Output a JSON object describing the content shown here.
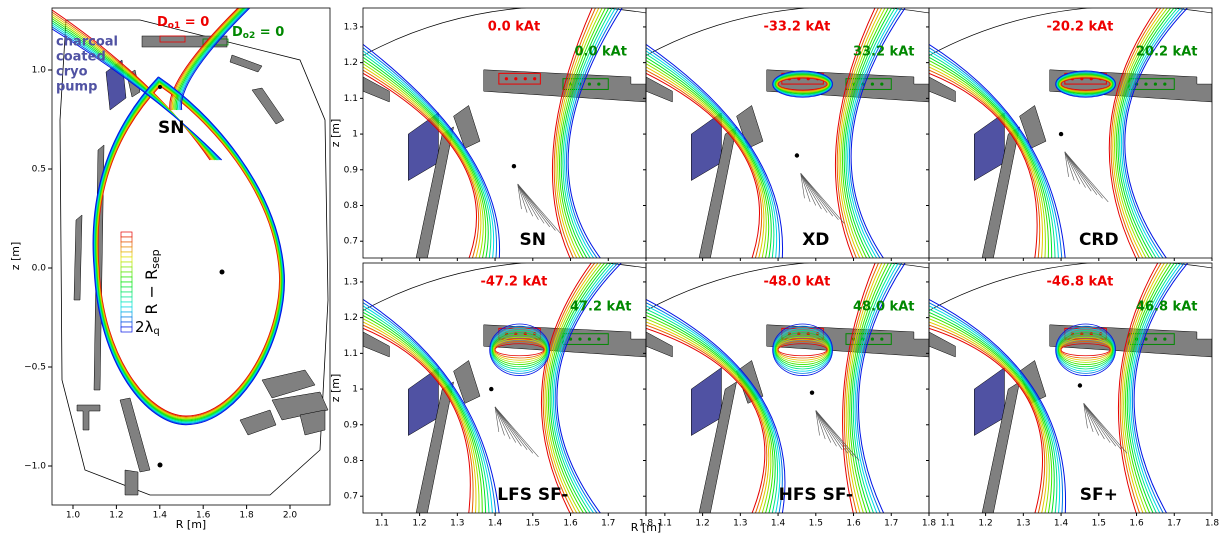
{
  "main_panel": {
    "xlabel": "R [m]",
    "ylabel": "z [m]",
    "xticks": [
      {
        "value": 1,
        "label": "1.0"
      },
      1.2,
      1.4,
      1.6,
      1.8,
      {
        "value": 2,
        "label": "2.0"
      }
    ],
    "yticks": [
      {
        "value": -1,
        "label": "−1.0"
      },
      {
        "value": -0.5,
        "label": "−0.5"
      },
      {
        "value": 0,
        "label": "0.0"
      },
      0.5,
      {
        "value": 1,
        "label": "1.0"
      }
    ],
    "coil_labels": [
      {
        "symbol": "D",
        "subscript": "o1",
        "text": " = 0"
      },
      {
        "symbol": "D",
        "subscript": "o2",
        "text": " = 0"
      }
    ],
    "pump_label": [
      "charcoal",
      "coated",
      "cryo",
      "pump"
    ],
    "config_label": "SN",
    "colorbar_label": {
      "text": "R − R",
      "subscript": "sep"
    },
    "colorbar_tick": {
      "text": "2λ",
      "subscript": "q"
    }
  },
  "panels_axes": {
    "xlabel": "R [m]",
    "ylabel": "z [m]",
    "xticks": [
      1.1,
      1.2,
      1.3,
      1.4,
      1.5,
      1.6,
      1.7,
      1.8
    ],
    "yticks": [
      0.7,
      0.8,
      0.9,
      1.0,
      1.1,
      1.2,
      1.3
    ]
  },
  "panels": [
    {
      "label": "SN",
      "current_1": "0.0 kAt",
      "current_2": "0.0 kAt"
    },
    {
      "label": "XD",
      "current_1": "-33.2 kAt",
      "current_2": "33.2 kAt"
    },
    {
      "label": "CRD",
      "current_1": "-20.2 kAt",
      "current_2": "20.2 kAt"
    },
    {
      "label": "LFS SF-",
      "current_1": "-47.2 kAt",
      "current_2": "47.2 kAt"
    },
    {
      "label": "HFS SF-",
      "current_1": "-48.0 kAt",
      "current_2": "48.0 kAt"
    },
    {
      "label": "SF+",
      "current_1": "-46.8 kAt",
      "current_2": "46.8 kAt"
    }
  ]
}
